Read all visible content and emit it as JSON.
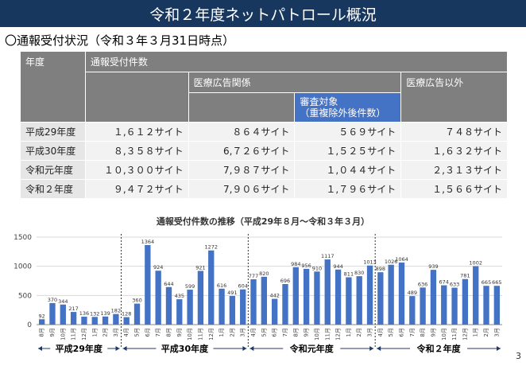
{
  "header": {
    "title": "令和２年度ネットパトロール概況",
    "subtitle": "〇通報受付状況（令和３年３月31日時点）"
  },
  "table": {
    "headers": {
      "year": "年度",
      "total": "通報受付件数",
      "medical": "医療広告関係",
      "target": "審査対象\n（重複除外後件数）",
      "non_medical": "医療広告以外"
    },
    "rows": [
      {
        "year": "平成29年度",
        "total": "１,６１２サイト",
        "medical": "８６４サイト",
        "target": "５６９サイト",
        "non_medical": "７４８サイト"
      },
      {
        "year": "平成30年度",
        "total": "８,３５８サイト",
        "medical": "6,７２６サイト",
        "target": "１,５２５サイト",
        "non_medical": "１,６３２サイト"
      },
      {
        "year": "令和元年度",
        "total": "１０,３００サイト",
        "medical": "7,９８７サイト",
        "target": "１,０４４サイト",
        "non_medical": "２,３１３サイト"
      },
      {
        "year": "令和２年度",
        "total": "９,４７２サイト",
        "medical": "7,９０６サイト",
        "target": "１,７９６サイト",
        "non_medical": "１,５６６サイト"
      }
    ]
  },
  "chart_data": {
    "type": "bar",
    "title": "通報受付件数の推移（平成29年８月～令和３年３月）",
    "ylim": [
      0,
      1500
    ],
    "yticks": [
      "0",
      "500",
      "1000",
      "1500"
    ],
    "grid": true,
    "bar_color": "#4472c4",
    "categories": [
      "8月",
      "9月",
      "10月",
      "11月",
      "12月",
      "1月",
      "2月",
      "3月",
      "4月",
      "5月",
      "6月",
      "7月",
      "8月",
      "9月",
      "10月",
      "11月",
      "12月",
      "1月",
      "2月",
      "3月",
      "4月",
      "5月",
      "6月",
      "7月",
      "8月",
      "9月",
      "10月",
      "11月",
      "12月",
      "1月",
      "2月",
      "3月",
      "4月",
      "5月",
      "6月",
      "7月",
      "8月",
      "9月",
      "10月",
      "11月",
      "12月",
      "1月",
      "2月",
      "3月"
    ],
    "values": [
      92,
      370,
      344,
      217,
      136,
      132,
      139,
      182,
      128,
      360,
      1364,
      924,
      644,
      435,
      599,
      921,
      1272,
      616,
      491,
      604,
      777,
      820,
      442,
      696,
      984,
      956,
      910,
      1117,
      944,
      811,
      830,
      1013,
      898,
      1026,
      1064,
      489,
      636,
      939,
      674,
      633,
      781,
      1002,
      665,
      665
    ],
    "groups": [
      {
        "label": "平成29年度",
        "start": 0,
        "count": 8
      },
      {
        "label": "平成30年度",
        "start": 8,
        "count": 12
      },
      {
        "label": "令和元年度",
        "start": 20,
        "count": 12
      },
      {
        "label": "令和２年度",
        "start": 32,
        "count": 12
      }
    ]
  },
  "footer": {
    "page_number": "3"
  }
}
